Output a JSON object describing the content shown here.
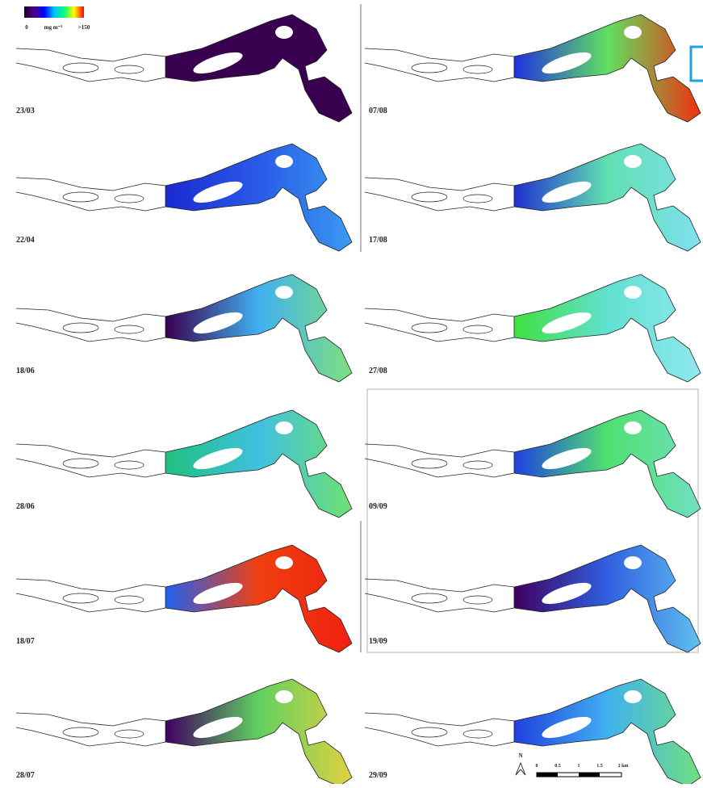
{
  "legend": {
    "labels": [
      "0",
      "mg m⁻³",
      ">150"
    ],
    "colors": [
      "#1a0030",
      "#4b0082",
      "#0000ff",
      "#00bfff",
      "#00ff7f",
      "#ffff00",
      "#ff0000"
    ]
  },
  "panels": [
    {
      "label": "23/03",
      "colors": [
        "#3a0050",
        "#3a0050",
        "#3a0050"
      ]
    },
    {
      "label": "22/04",
      "colors": [
        "#1a2ad0",
        "#2a5ae8",
        "#3a9af0"
      ]
    },
    {
      "label": "18/06",
      "colors": [
        "#3a0050",
        "#40b0f0",
        "#7ee07e"
      ]
    },
    {
      "label": "28/06",
      "colors": [
        "#20c080",
        "#40c0e0",
        "#70e070"
      ]
    },
    {
      "label": "18/07",
      "colors": [
        "#2060f0",
        "#f04010",
        "#f02010"
      ]
    },
    {
      "label": "28/07",
      "colors": [
        "#400060",
        "#60d060",
        "#e0d040"
      ]
    },
    {
      "label": "07/08",
      "colors": [
        "#2030e0",
        "#60e060",
        "#f03010"
      ]
    },
    {
      "label": "17/08",
      "colors": [
        "#2030d0",
        "#60e0b0",
        "#80e0f0"
      ]
    },
    {
      "label": "27/08",
      "colors": [
        "#40e040",
        "#60e0d0",
        "#90e8f0"
      ]
    },
    {
      "label": "09/09",
      "colors": [
        "#2040e0",
        "#50e070",
        "#70e0c0"
      ]
    },
    {
      "label": "19/09",
      "colors": [
        "#400060",
        "#3060e0",
        "#60c0f0"
      ]
    },
    {
      "label": "29/09",
      "colors": [
        "#2040e0",
        "#40b0f0",
        "#70e080"
      ]
    }
  ],
  "scale_bar": {
    "labels": [
      "0",
      "0.5",
      "1",
      "1.5",
      "2 km"
    ]
  },
  "north": "N"
}
